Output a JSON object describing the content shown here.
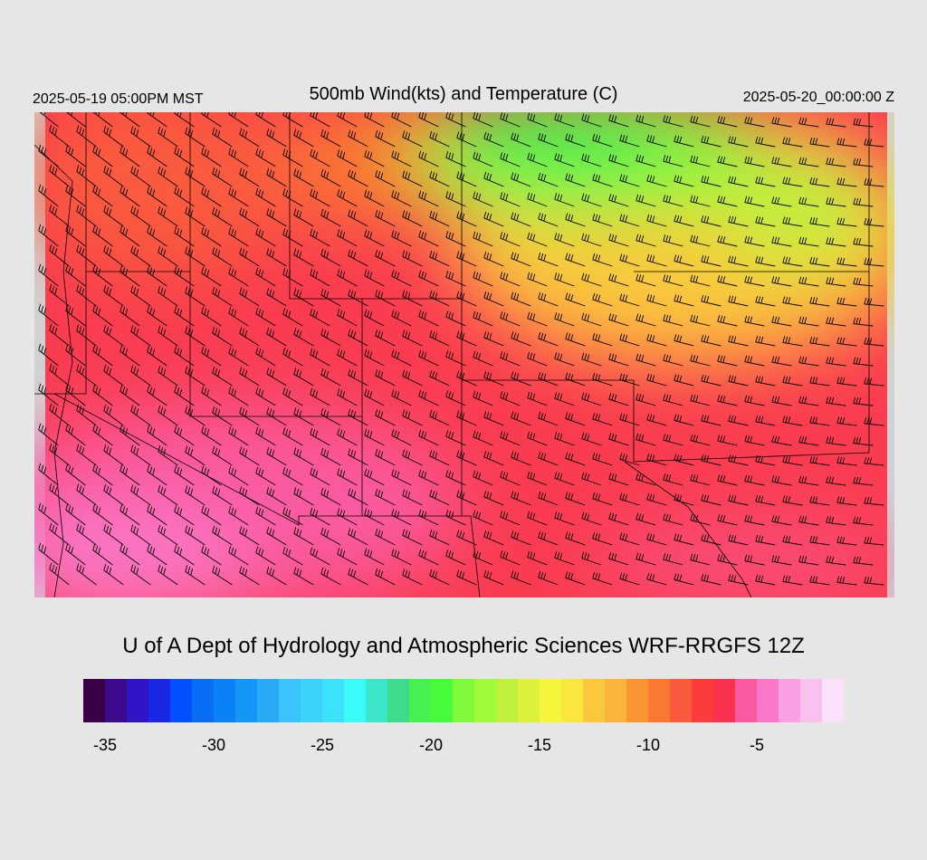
{
  "header": {
    "left": "2025-05-19 05:00PM MST",
    "title": "500mb Wind(kts) and Temperature (C)",
    "right": "2025-05-20_00:00:00 Z"
  },
  "footer": {
    "credit": "U of A Dept of Hydrology and Atmospheric Sciences WRF-RRGFS 12Z"
  },
  "colorbar": {
    "bins": [
      -36,
      -35,
      -34,
      -33,
      -32,
      -31,
      -30,
      -29,
      -28,
      -27,
      -26,
      -25,
      -24,
      -23,
      -22,
      -21,
      -20,
      -19,
      -18,
      -17,
      -16,
      -15,
      -14,
      -13,
      -12,
      -11,
      -10,
      -9,
      -8,
      -7,
      -6,
      -5,
      -4,
      -3,
      -2,
      -1
    ],
    "colors": [
      "#3a0046",
      "#3c0a8c",
      "#3214c8",
      "#1a28e6",
      "#0050ff",
      "#0a6ef5",
      "#0a82f5",
      "#1496f5",
      "#28aaf5",
      "#3cc3fa",
      "#3cd2fa",
      "#3ce1fa",
      "#3cfafa",
      "#3ce6c8",
      "#3cdc8c",
      "#46f050",
      "#46fa3c",
      "#82fa3c",
      "#a0fa3c",
      "#bef03c",
      "#dcf03c",
      "#f5f53c",
      "#fae63c",
      "#fac83c",
      "#fab43c",
      "#fa9632",
      "#fa7832",
      "#fa5a3c",
      "#fa3c3c",
      "#fa3250",
      "#fa5aa0",
      "#fa78c8",
      "#fa9ee6",
      "#fac0ee",
      "#fae0f8"
    ],
    "ticks": [
      -35,
      -30,
      -25,
      -20,
      -15,
      -10,
      -5
    ]
  }
}
